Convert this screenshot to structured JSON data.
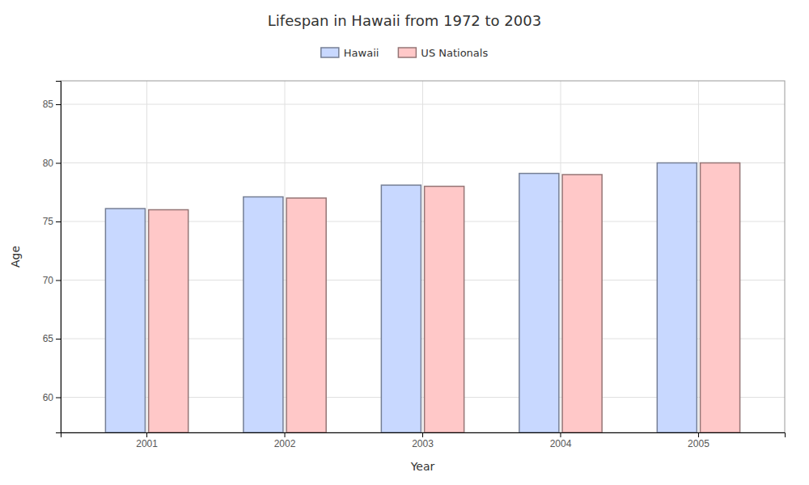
{
  "chart_data": {
    "type": "bar",
    "title": "Lifespan in Hawaii from 1972 to 2003",
    "x_label": "Year",
    "y_label": "Age",
    "categories": [
      "2001",
      "2002",
      "2003",
      "2004",
      "2005"
    ],
    "series": [
      {
        "name": "Hawaii",
        "color": "#c8d8ff",
        "values": [
          76.1,
          77.1,
          78.1,
          79.1,
          80.0
        ]
      },
      {
        "name": "US Nationals",
        "color": "#ffc8c8",
        "values": [
          76.0,
          77.0,
          78.0,
          79.0,
          80.0
        ]
      }
    ],
    "ylim": [
      57,
      87
    ],
    "yticks": [
      60,
      65,
      70,
      75,
      80,
      85
    ],
    "grid": true,
    "legend": "top"
  }
}
